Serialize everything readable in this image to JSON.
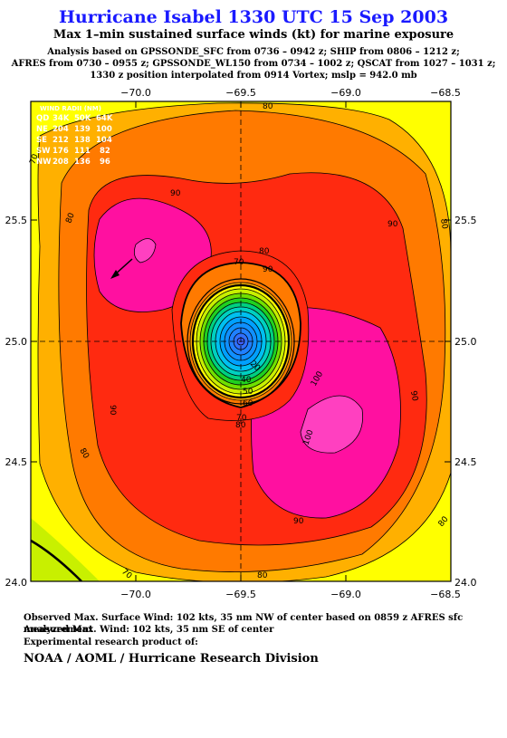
{
  "header": {
    "title": "Hurricane Isabel 1330 UTC 15 Sep 2003",
    "subtitle": "Max 1–min sustained surface winds (kt) for marine exposure",
    "info_lines": [
      "Analysis based on  GPSSONDE_SFC from 0736 – 0942 z;  SHIP from 0806 – 1212 z;",
      "AFRES from 0730 – 0955 z;  GPSSONDE_WL150 from 0734 – 1002 z;  QSCAT from 1027 – 1031 z;",
      "1330 z position interpolated from 0914 Vortex; mslp = 942.0 mb"
    ]
  },
  "map": {
    "lon_ticks": [
      "−70.0",
      "−69.5",
      "−69.0",
      "−68.5"
    ],
    "lat_ticks": [
      "24.0",
      "24.5",
      "25.0",
      "25.5"
    ],
    "lon_range": [
      -70.4,
      -68.5
    ],
    "lat_range": [
      24.0,
      25.5
    ],
    "center": {
      "lon": -69.5,
      "lat": 25.0
    },
    "contour_labels": [
      "80",
      "90",
      "80",
      "90",
      "80",
      "70",
      "80",
      "90",
      "100",
      "90",
      "80",
      "90",
      "80",
      "70",
      "80",
      "90",
      "100",
      "70",
      "60",
      "50",
      "40",
      "20",
      "70",
      "80"
    ],
    "wind_radii": {
      "header": "WIND RADII (NM)",
      "columns": [
        "QD",
        "34K",
        "50K",
        "64K"
      ],
      "rows": [
        [
          "NE",
          "204",
          "139",
          "100"
        ],
        [
          "SE",
          "212",
          "138",
          "104"
        ],
        [
          "SW",
          "176",
          "111",
          "82"
        ],
        [
          "NW",
          "208",
          "136",
          "96"
        ]
      ]
    },
    "colors": {
      "background_yellow": "#ffff00",
      "greenyellow": "#c8f000",
      "light_orange": "#ffb000",
      "orange": "#ff7a00",
      "red": "#ff2a10",
      "magenta": "#ff10a0",
      "pink": "#ff40c0"
    }
  },
  "footer": {
    "line1": "Observed Max. Surface Wind: 102 kts, 35 nm NW of center based on 0859 z AFRES sfc measurement",
    "line2": "Analyzed Max. Wind: 102 kts, 35 nm SE of center",
    "line3": "Experimental research product of:",
    "org": "NOAA / AOML / Hurricane Research Division"
  }
}
